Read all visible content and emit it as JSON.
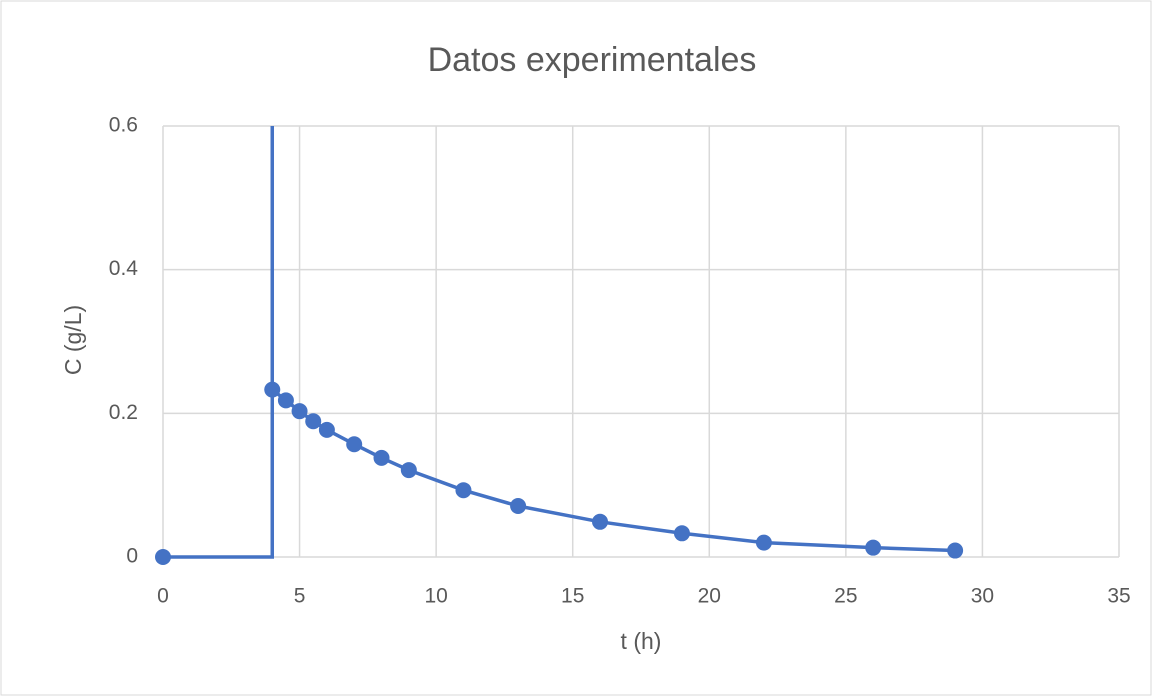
{
  "chart_data": {
    "type": "scatter-line",
    "title": "Datos experimentales",
    "x_label": "t (h)",
    "y_label": "C (g/L)",
    "series": [
      {
        "color": "#4472c4",
        "x": [
          0,
          4,
          4,
          4,
          4.5,
          5,
          5.5,
          6,
          7,
          8,
          9,
          11,
          13,
          16,
          19,
          22,
          26,
          29
        ],
        "values": [
          0,
          0,
          0.6,
          0.233,
          0.218,
          0.203,
          0.189,
          0.177,
          0.157,
          0.138,
          0.121,
          0.093,
          0.071,
          0.049,
          0.033,
          0.02,
          0.013,
          0.009
        ],
        "markers": [
          true,
          false,
          false,
          true,
          true,
          true,
          true,
          true,
          true,
          true,
          true,
          true,
          true,
          true,
          true,
          true,
          true,
          true
        ]
      }
    ],
    "xlim": [
      0,
      35
    ],
    "xticks": [
      0,
      5,
      10,
      15,
      20,
      25,
      30,
      35
    ],
    "ylim": [
      0,
      0.6
    ],
    "yticks": [
      0,
      0.2,
      0.4,
      0.6
    ],
    "grid": true
  }
}
